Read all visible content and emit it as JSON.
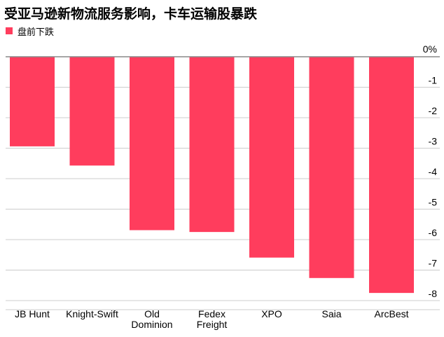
{
  "chart_data": {
    "type": "bar",
    "title": "受亚马逊新物流服务影响，卡车运输股暴跌",
    "legend": [
      {
        "name": "盘前下跌",
        "color": "#ff3d5d"
      }
    ],
    "legend_position": "top-left",
    "categories": [
      [
        "JB Hunt"
      ],
      [
        "Knight-Swift"
      ],
      [
        "Old",
        "Dominion"
      ],
      [
        "Fedex",
        "Freight"
      ],
      [
        "XPO"
      ],
      [
        "Saia"
      ],
      [
        "ArcBest"
      ]
    ],
    "series": [
      {
        "name": "盘前下跌",
        "values": [
          -2.94,
          -3.57,
          -5.69,
          -5.75,
          -6.59,
          -7.26,
          -7.75
        ]
      }
    ],
    "y_ticks": [
      "0%",
      "-1",
      "-2",
      "-3",
      "-4",
      "-5",
      "-6",
      "-7",
      "-8"
    ],
    "ylim": [
      -8,
      0
    ],
    "y_axis_side": "right",
    "grid": true,
    "colors": {
      "bar": "#ff3d5d",
      "grid": "#cccccc",
      "zero_line": "#888888"
    }
  }
}
